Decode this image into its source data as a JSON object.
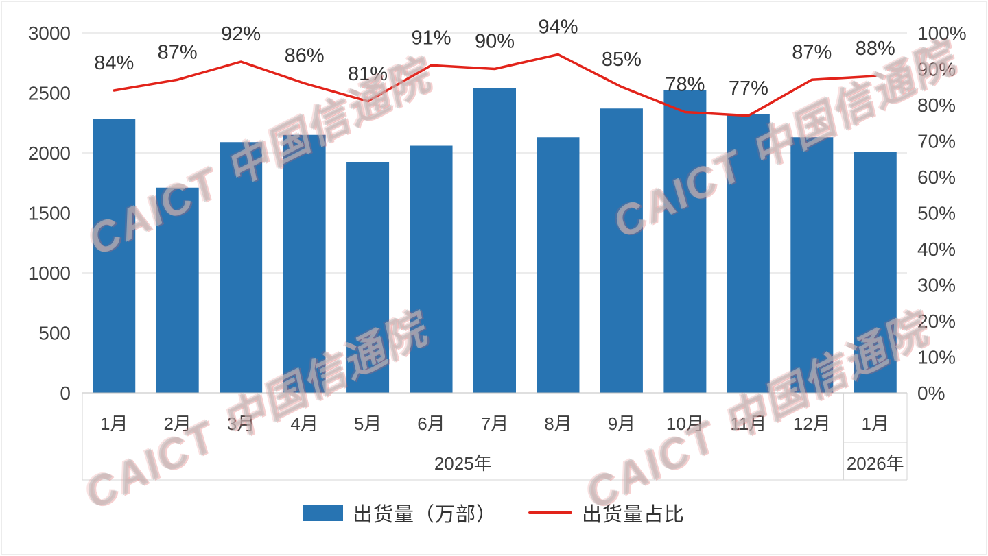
{
  "watermark": {
    "text": "CAICT 中国信通院"
  },
  "legend": {
    "bars_label": "出货量（万部）",
    "line_label": "出货量占比"
  },
  "colors": {
    "bar": "#2874B2",
    "line": "#E2231A",
    "grid": "#D9D9D9",
    "baseline": "#BFBFBF",
    "frame": "#D6D6D6",
    "axis_text": "#3F3F3F",
    "point_label_text": "#333333"
  },
  "chart_data": {
    "type": "bar",
    "subtype": "combo-bar-line-dual-axis",
    "categories": [
      "1月",
      "2月",
      "3月",
      "4月",
      "5月",
      "6月",
      "7月",
      "8月",
      "9月",
      "10月",
      "11月",
      "12月",
      "1月"
    ],
    "year_groups": [
      {
        "label": "2025年",
        "span": 12
      },
      {
        "label": "2026年",
        "span": 1
      }
    ],
    "series": [
      {
        "name": "出货量（万部）",
        "type": "bar",
        "axis": "left",
        "values": [
          2280,
          1710,
          2090,
          2150,
          1920,
          2060,
          2540,
          2130,
          2370,
          2520,
          2320,
          2130,
          2010
        ]
      },
      {
        "name": "出货量占比",
        "type": "line",
        "axis": "right",
        "values_percent": [
          84,
          87,
          92,
          86,
          81,
          91,
          90,
          94,
          85,
          78,
          77,
          87,
          88
        ]
      }
    ],
    "point_labels": [
      "84%",
      "87%",
      "92%",
      "86%",
      "81%",
      "91%",
      "90%",
      "94%",
      "85%",
      "78%",
      "77%",
      "87%",
      "88%"
    ],
    "left_axis": {
      "min": 0,
      "max": 3000,
      "step": 500
    },
    "right_axis": {
      "min": 0,
      "max": 100,
      "step": 10,
      "format": "percent"
    },
    "grid": true,
    "legend_position": "bottom"
  }
}
